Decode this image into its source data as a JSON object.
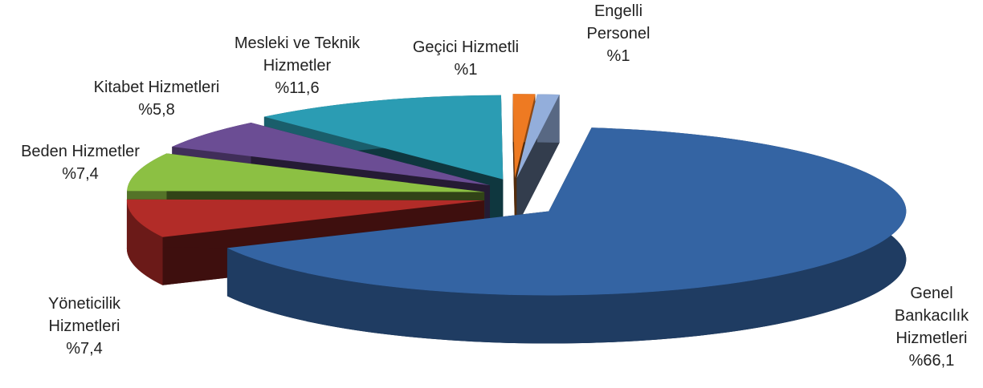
{
  "chart_data": {
    "type": "pie3d",
    "categories": [
      "Genel Bankacılık Hizmetleri",
      "Yöneticilik Hizmetleri",
      "Beden Hizmetler",
      "Kitabet Hizmetleri",
      "Mesleki ve Teknik Hizmetler",
      "Geçici Hizmetli",
      "Engelli Personel"
    ],
    "values": [
      66.1,
      7.4,
      7.4,
      5.8,
      11.6,
      1,
      1
    ],
    "value_labels": [
      "%66,1",
      "%7,4",
      "%7,4",
      "%5,8",
      "%11,6",
      "%1",
      "%1"
    ],
    "colors": [
      "#3464a3",
      "#b22c28",
      "#8cc043",
      "#6b4d94",
      "#2b9cb3",
      "#ee7a22",
      "#93aedb"
    ]
  }
}
